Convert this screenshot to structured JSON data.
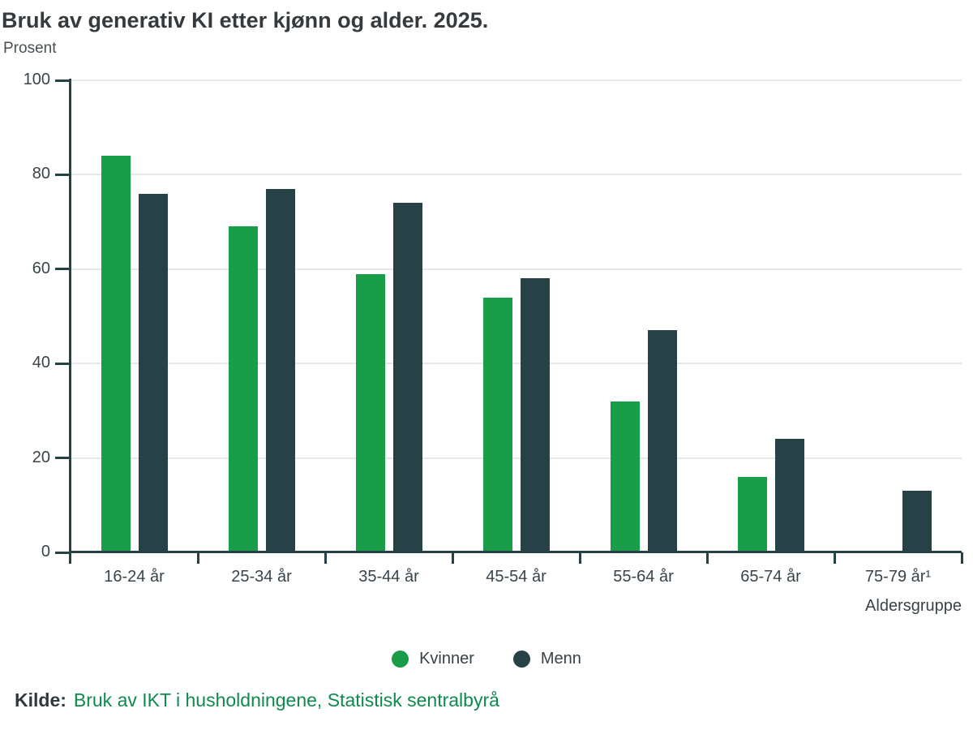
{
  "header": {
    "title": "Bruk av generativ KI etter kjønn og alder. 2025.",
    "unit_label": "Prosent"
  },
  "chart_data": {
    "type": "bar",
    "title": "Bruk av generativ KI etter kjønn og alder. 2025.",
    "ylabel": "Prosent",
    "xlabel": "Aldersgruppe",
    "categories": [
      "16-24 år",
      "25-34 år",
      "35-44 år",
      "45-54 år",
      "55-64 år",
      "65-74 år",
      "75-79 år¹"
    ],
    "series": [
      {
        "name": "Kvinner",
        "color": "#1a9d49",
        "values": [
          84,
          69,
          59,
          54,
          32,
          16,
          null
        ]
      },
      {
        "name": "Menn",
        "color": "#274247",
        "values": [
          76,
          77,
          74,
          58,
          47,
          24,
          13
        ]
      }
    ],
    "ylim": [
      0,
      100
    ],
    "yticks": [
      0,
      20,
      40,
      60,
      80,
      100
    ],
    "grid": true,
    "legend_position": "bottom"
  },
  "footer": {
    "source_label": "Kilde:",
    "source_link": "Bruk av IKT i husholdningene, Statistisk sentralbyrå"
  },
  "colors": {
    "kvinner": "#1a9d49",
    "menn": "#274247",
    "axis": "#274247",
    "gridline": "#e7e7e7",
    "link_green": "#0e8a4d",
    "title_text": "#343a3d"
  }
}
